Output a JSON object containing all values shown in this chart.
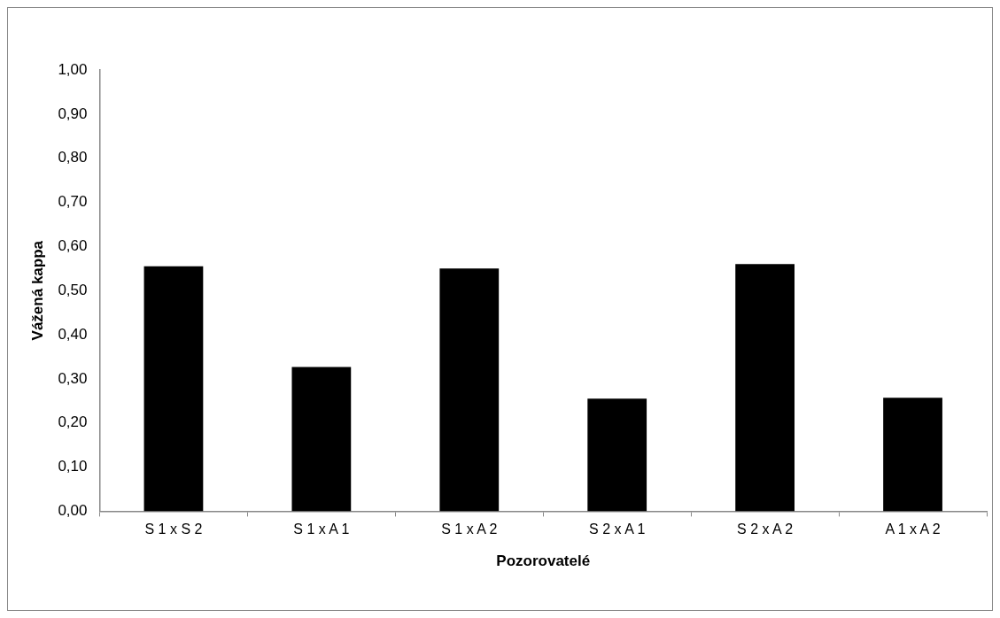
{
  "chart_data": {
    "type": "bar",
    "xlabel": "Pozorovatelé",
    "ylabel": "Vážená kappa",
    "categories": [
      "S 1 x S 2",
      "S 1 x A 1",
      "S 1 x A 2",
      "S 2 x A 1",
      "S 2 x A 2",
      "A 1 x A 2"
    ],
    "values": [
      0.555,
      0.327,
      0.55,
      0.255,
      0.56,
      0.257
    ],
    "color": "#000000",
    "ylim": [
      0,
      1
    ],
    "yticks": [
      {
        "value": 0,
        "label": "0,00"
      },
      {
        "value": 0.1,
        "label": "0,10"
      },
      {
        "value": 0.2,
        "label": "0,20"
      },
      {
        "value": 0.3,
        "label": "0,30"
      },
      {
        "value": 0.4,
        "label": "0,40"
      },
      {
        "value": 0.5,
        "label": "0,50"
      },
      {
        "value": 0.6,
        "label": "0,60"
      },
      {
        "value": 0.7,
        "label": "0,70"
      },
      {
        "value": 0.8,
        "label": "0,80"
      },
      {
        "value": 0.9,
        "label": "0,90"
      },
      {
        "value": 1,
        "label": "1,00"
      }
    ],
    "grid": false,
    "legend": false
  }
}
